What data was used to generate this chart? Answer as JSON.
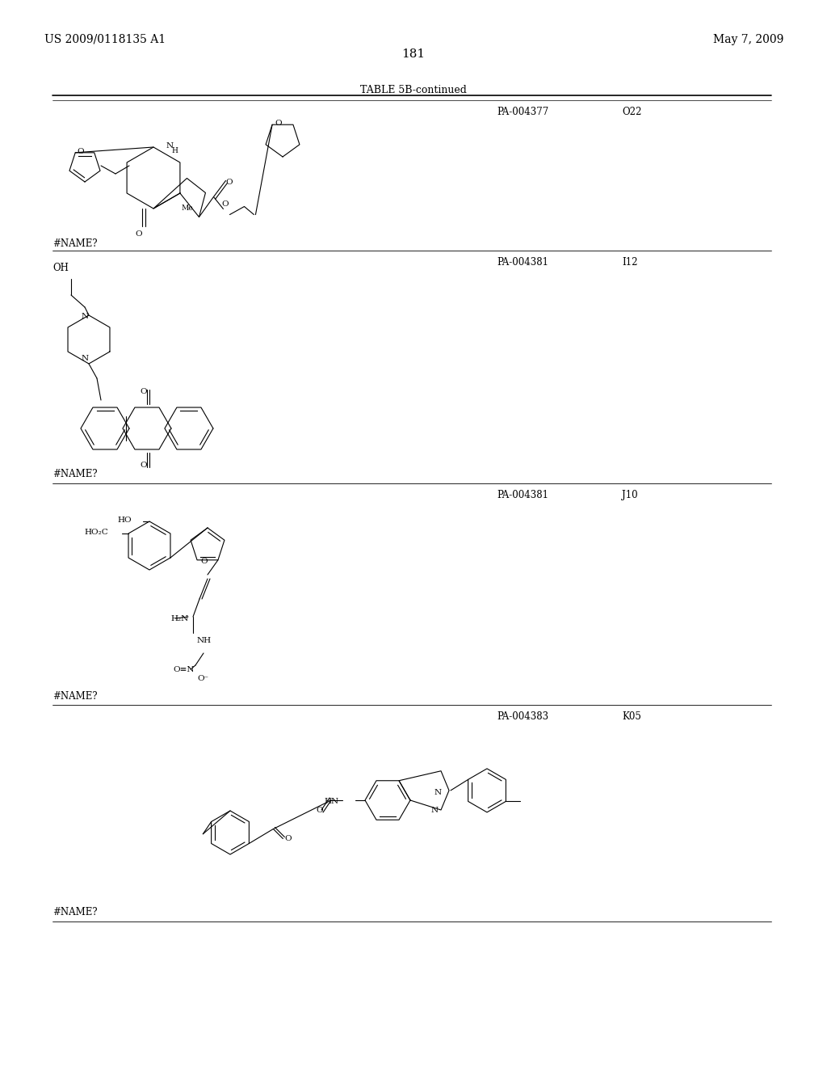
{
  "bg_color": "#ffffff",
  "header_left": "US 2009/0118135 A1",
  "header_right": "May 7, 2009",
  "page_number": "181",
  "table_title": "TABLE 5B-continued",
  "entries": [
    {
      "compound_id": "PA-004377",
      "compound_class": "O22",
      "name_label": "#NAME?"
    },
    {
      "compound_id": "PA-004381",
      "compound_class": "I12",
      "name_label": "#NAME?"
    },
    {
      "compound_id": "PA-004381",
      "compound_class": "J10",
      "name_label": "#NAME?"
    },
    {
      "compound_id": "PA-004383",
      "compound_class": "K05",
      "name_label": "#NAME?"
    }
  ],
  "text_color": "#000000",
  "font_size_header": 10,
  "font_size_table_title": 9,
  "font_size_body": 8.5,
  "font_size_small": 7.5,
  "font_size_page": 11
}
